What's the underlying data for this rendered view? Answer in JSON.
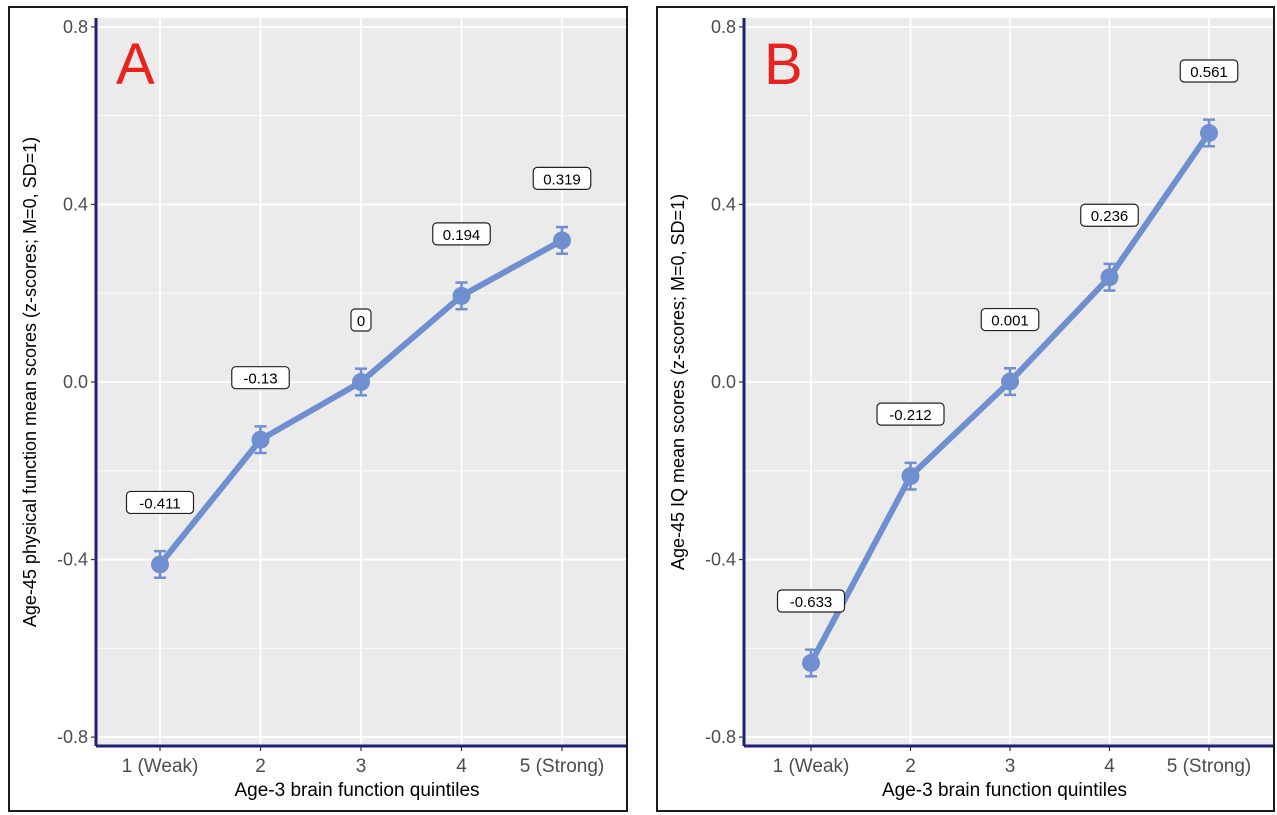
{
  "chart_data": [
    {
      "type": "line",
      "panel_label": "A",
      "categories": [
        "1 (Weak)",
        "2",
        "3",
        "4",
        "5 (Strong)"
      ],
      "values": [
        -0.411,
        -0.13,
        0,
        0.194,
        0.319
      ],
      "value_labels": [
        "-0.411",
        "-0.13",
        "0",
        "0.194",
        "0.319"
      ],
      "error": 0.03,
      "xlabel": "Age-3 brain function quintiles",
      "ylabel": "Age-45 physical function mean scores (z-scores; M=0, SD=1)",
      "ylim": [
        -0.82,
        0.82
      ],
      "yticks": [
        -0.8,
        -0.4,
        0.0,
        0.4,
        0.8
      ],
      "ytick_labels": [
        "-0.8",
        "-0.4",
        "0.0",
        "0.4",
        "0.8"
      ],
      "grid": true
    },
    {
      "type": "line",
      "panel_label": "B",
      "categories": [
        "1 (Weak)",
        "2",
        "3",
        "4",
        "5 (Strong)"
      ],
      "values": [
        -0.633,
        -0.212,
        0.001,
        0.236,
        0.561
      ],
      "value_labels": [
        "-0.633",
        "-0.212",
        "0.001",
        "0.236",
        "0.561"
      ],
      "error": 0.03,
      "xlabel": "Age-3 brain function quintiles",
      "ylabel": "Age-45 IQ mean scores (z-scores; M=0, SD=1)",
      "ylim": [
        -0.82,
        0.82
      ],
      "yticks": [
        -0.8,
        -0.4,
        0.0,
        0.4,
        0.8
      ],
      "ytick_labels": [
        "-0.8",
        "-0.4",
        "0.0",
        "0.4",
        "0.8"
      ],
      "grid": true
    }
  ],
  "colors": {
    "series": "#6f8fd0",
    "plot_background": "#ebebeb",
    "grid": "#ffffff",
    "axis_line": "#1f1f7a",
    "panel_label": "#e8221c",
    "tick_text": "#4d4d4d"
  }
}
